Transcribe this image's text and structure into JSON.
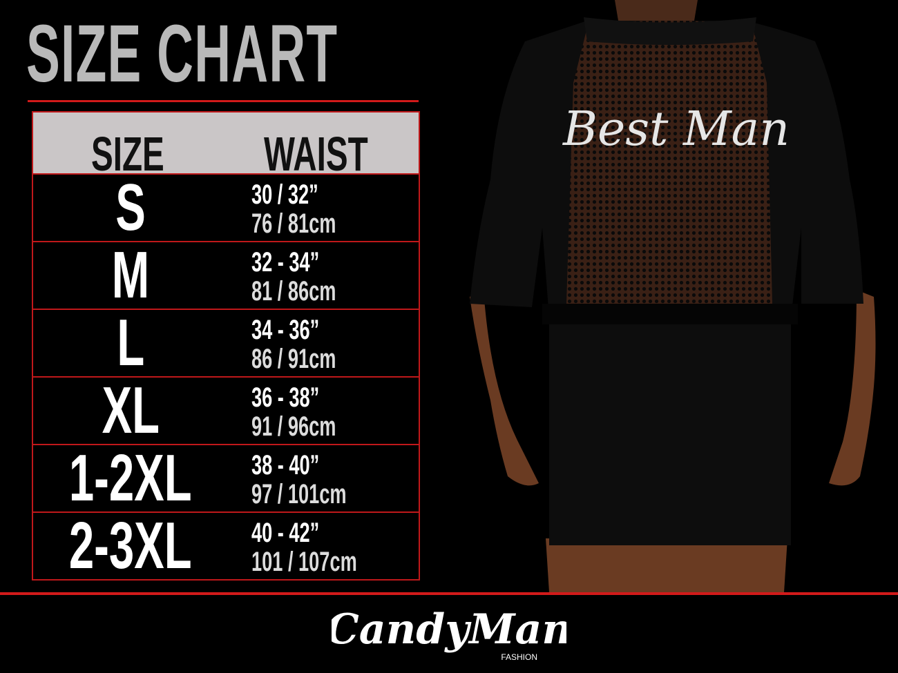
{
  "title": "SIZE CHART",
  "table": {
    "headers": [
      "SIZE",
      "WAIST"
    ],
    "rows": [
      {
        "size": "S",
        "inches": "30 / 32”",
        "cm": "76 / 81cm"
      },
      {
        "size": "M",
        "inches": "32 - 34”",
        "cm": "81 / 86cm"
      },
      {
        "size": "L",
        "inches": "34 - 36”",
        "cm": "86 / 91cm"
      },
      {
        "size": "XL",
        "inches": "36 - 38”",
        "cm": "91 / 96cm"
      },
      {
        "size": "1-2XL",
        "inches": "38 - 40”",
        "cm": "97 / 101cm"
      },
      {
        "size": "2-3XL",
        "inches": "40 - 42”",
        "cm": "101 / 107cm"
      }
    ]
  },
  "product_print": "Best Man",
  "brand": {
    "name": "CandyMan",
    "tagline": "FASHION"
  },
  "colors": {
    "accent": "#d21a1a",
    "header_bg": "#cac6c7",
    "title": "#b9b9b9",
    "background": "#000000"
  }
}
